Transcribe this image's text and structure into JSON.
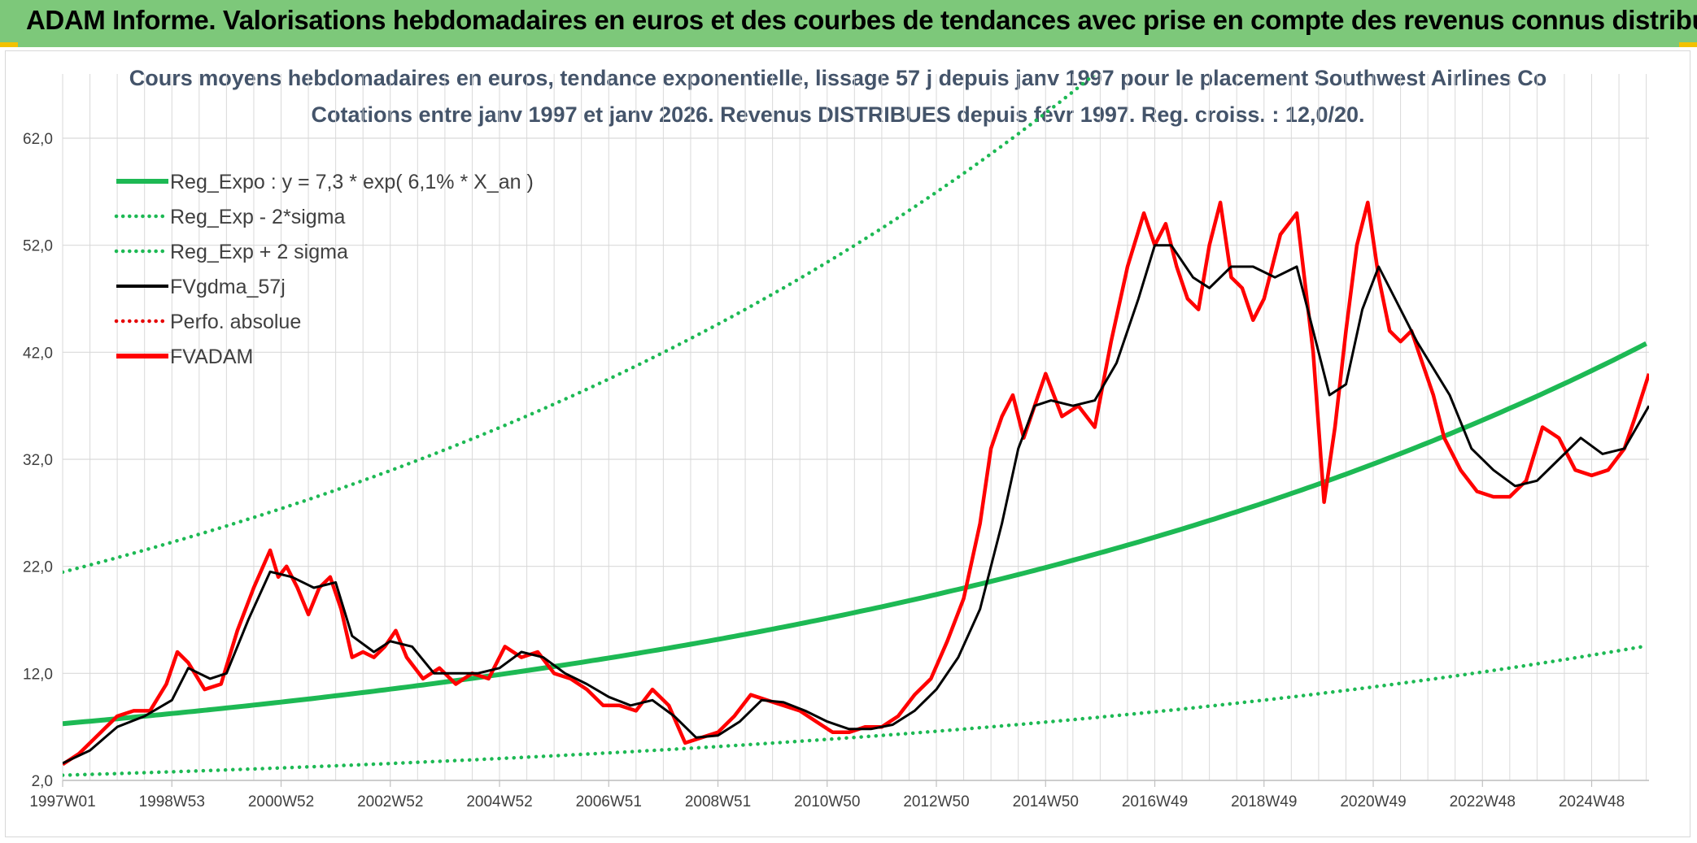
{
  "header": {
    "title": "ADAM Informe. Valorisations hebdomadaires en euros et des courbes de tendances avec prise en compte des revenus connus distribués"
  },
  "colors": {
    "banner": "#7dc87a",
    "reg_expo": "#1db954",
    "sigma": "#1db954",
    "fvgdma": "#000000",
    "perfo": "#e60000",
    "fvadam": "#ff0000",
    "grid": "#d9d9d9"
  },
  "chart_data": {
    "type": "line",
    "title": "Cours moyens hebdomadaires en euros, tendance exponentielle, lissage 57 j depuis janv 1997 pour le placement Southwest Airlines Co",
    "subtitle": "Cotations entre janv 1997 et janv 2026. Revenus DISTRIBUES depuis févr 1997. Reg. croiss. : 12,0/20.",
    "xlabel": "",
    "ylabel": "",
    "x_range": [
      1997.0,
      2026.05
    ],
    "ylim": [
      2,
      68
    ],
    "yticks": [
      2,
      12,
      22,
      32,
      42,
      52,
      62
    ],
    "ytick_labels": [
      "2,0",
      "12,0",
      "22,0",
      "32,0",
      "42,0",
      "52,0",
      "62,0"
    ],
    "xticks": [
      1997.0,
      1999.0,
      2001.0,
      2003.0,
      2005.0,
      2007.0,
      2009.0,
      2011.0,
      2013.0,
      2015.0,
      2017.0,
      2019.0,
      2021.0,
      2023.0,
      2025.0
    ],
    "xtick_labels": [
      "1997W01",
      "1998W53",
      "2000W52",
      "2002W52",
      "2004W52",
      "2006W51",
      "2008W51",
      "2010W50",
      "2012W50",
      "2014W50",
      "2016W49",
      "2018W49",
      "2020W49",
      "2022W48",
      "2024W48"
    ],
    "grid": true,
    "legend_position": "top-left",
    "regression": {
      "label": "Reg_Expo : y = 7,3 * exp( 6,1% *  X_an )",
      "a": 7.3,
      "rate": 0.061,
      "sigma_factor": 2.94
    },
    "series": [
      {
        "name": "Reg_Expo : y = 7,3 * exp( 6,1% *  X_an )",
        "style": "solid-thick",
        "color": "#1db954"
      },
      {
        "name": "Reg_Exp - 2*sigma",
        "style": "dotted",
        "color": "#1db954"
      },
      {
        "name": "Reg_Exp + 2 sigma",
        "style": "dotted",
        "color": "#1db954"
      },
      {
        "name": "FVgdma_57j",
        "style": "solid",
        "color": "#000000"
      },
      {
        "name": "Perfo. absolue",
        "style": "dotted",
        "color": "#e60000"
      },
      {
        "name": "FVADAM",
        "style": "solid-thick",
        "color": "#ff0000",
        "x": [
          1997.0,
          1997.3,
          1997.6,
          1998.0,
          1998.3,
          1998.6,
          1998.9,
          1999.1,
          1999.3,
          1999.6,
          1999.9,
          2000.2,
          2000.5,
          2000.8,
          2000.95,
          2001.1,
          2001.3,
          2001.5,
          2001.7,
          2001.9,
          2002.1,
          2002.3,
          2002.5,
          2002.7,
          2002.9,
          2003.1,
          2003.3,
          2003.6,
          2003.9,
          2004.2,
          2004.5,
          2004.8,
          2005.1,
          2005.4,
          2005.7,
          2006.0,
          2006.3,
          2006.6,
          2006.9,
          2007.2,
          2007.5,
          2007.8,
          2008.1,
          2008.4,
          2008.7,
          2009.0,
          2009.3,
          2009.6,
          2009.9,
          2010.2,
          2010.5,
          2010.8,
          2011.1,
          2011.4,
          2011.7,
          2012.0,
          2012.3,
          2012.6,
          2012.9,
          2013.2,
          2013.5,
          2013.8,
          2014.0,
          2014.2,
          2014.4,
          2014.6,
          2014.8,
          2015.0,
          2015.3,
          2015.6,
          2015.9,
          2016.2,
          2016.5,
          2016.8,
          2017.0,
          2017.2,
          2017.4,
          2017.6,
          2017.8,
          2018.0,
          2018.2,
          2018.4,
          2018.6,
          2018.8,
          2019.0,
          2019.3,
          2019.6,
          2019.9,
          2020.1,
          2020.3,
          2020.5,
          2020.7,
          2020.9,
          2021.1,
          2021.3,
          2021.5,
          2021.7,
          2021.9,
          2022.1,
          2022.3,
          2022.6,
          2022.9,
          2023.2,
          2023.5,
          2023.8,
          2024.1,
          2024.4,
          2024.7,
          2025.0,
          2025.3,
          2025.6,
          2025.8,
          2026.05
        ],
        "y": [
          3.5,
          4.5,
          6.0,
          8.0,
          8.5,
          8.5,
          11.0,
          14.0,
          13.0,
          10.5,
          11.0,
          16.0,
          20.0,
          23.5,
          21.0,
          22.0,
          20.0,
          17.5,
          20.0,
          21.0,
          18.0,
          13.5,
          14.0,
          13.5,
          14.5,
          16.0,
          13.5,
          11.5,
          12.5,
          11.0,
          12.0,
          11.5,
          14.5,
          13.5,
          14.0,
          12.0,
          11.5,
          10.5,
          9.0,
          9.0,
          8.5,
          10.5,
          9.0,
          5.5,
          6.0,
          6.5,
          8.0,
          10.0,
          9.5,
          9.0,
          8.5,
          7.5,
          6.5,
          6.5,
          7.0,
          7.0,
          8.0,
          10.0,
          11.5,
          15.0,
          19.0,
          26.0,
          33.0,
          36.0,
          38.0,
          34.0,
          37.0,
          40.0,
          36.0,
          37.0,
          35.0,
          43.0,
          50.0,
          55.0,
          52.0,
          54.0,
          50.0,
          47.0,
          46.0,
          52.0,
          56.0,
          49.0,
          48.0,
          45.0,
          47.0,
          53.0,
          55.0,
          42.0,
          28.0,
          35.0,
          44.0,
          52.0,
          56.0,
          49.0,
          44.0,
          43.0,
          44.0,
          41.0,
          38.0,
          34.0,
          31.0,
          29.0,
          28.5,
          28.5,
          30.0,
          35.0,
          34.0,
          31.0,
          30.5,
          31.0,
          33.0,
          36.0,
          40.0
        ]
      },
      {
        "name": "FVgdma_57j",
        "x": [
          1997.0,
          1997.5,
          1998.0,
          1998.5,
          1999.0,
          1999.3,
          1999.7,
          2000.0,
          2000.4,
          2000.8,
          2001.2,
          2001.6,
          2002.0,
          2002.3,
          2002.7,
          2003.0,
          2003.4,
          2003.8,
          2004.2,
          2004.6,
          2005.0,
          2005.4,
          2005.8,
          2006.2,
          2006.6,
          2007.0,
          2007.4,
          2007.8,
          2008.2,
          2008.6,
          2009.0,
          2009.4,
          2009.8,
          2010.2,
          2010.6,
          2011.0,
          2011.4,
          2011.8,
          2012.2,
          2012.6,
          2013.0,
          2013.4,
          2013.8,
          2014.2,
          2014.5,
          2014.8,
          2015.1,
          2015.5,
          2015.9,
          2016.3,
          2016.7,
          2017.0,
          2017.3,
          2017.7,
          2018.0,
          2018.4,
          2018.8,
          2019.2,
          2019.6,
          2019.9,
          2020.2,
          2020.5,
          2020.8,
          2021.1,
          2021.4,
          2021.8,
          2022.1,
          2022.4,
          2022.8,
          2023.2,
          2023.6,
          2024.0,
          2024.4,
          2024.8,
          2025.2,
          2025.6,
          2026.05
        ],
        "y": [
          3.6,
          4.8,
          7.0,
          8.0,
          9.5,
          12.5,
          11.5,
          12.0,
          17.0,
          21.5,
          21.0,
          20.0,
          20.5,
          15.5,
          14.0,
          15.0,
          14.5,
          12.0,
          12.0,
          12.0,
          12.5,
          14.0,
          13.5,
          12.0,
          11.0,
          9.8,
          9.0,
          9.5,
          8.0,
          6.0,
          6.2,
          7.5,
          9.5,
          9.3,
          8.5,
          7.5,
          6.8,
          6.8,
          7.2,
          8.5,
          10.5,
          13.5,
          18.0,
          26.0,
          33.0,
          37.0,
          37.5,
          37.0,
          37.5,
          41.0,
          47.0,
          52.0,
          52.0,
          49.0,
          48.0,
          50.0,
          50.0,
          49.0,
          50.0,
          44.0,
          38.0,
          39.0,
          46.0,
          50.0,
          47.0,
          43.0,
          40.5,
          38.0,
          33.0,
          31.0,
          29.5,
          30.0,
          32.0,
          34.0,
          32.5,
          33.0,
          37.0
        ]
      }
    ]
  }
}
